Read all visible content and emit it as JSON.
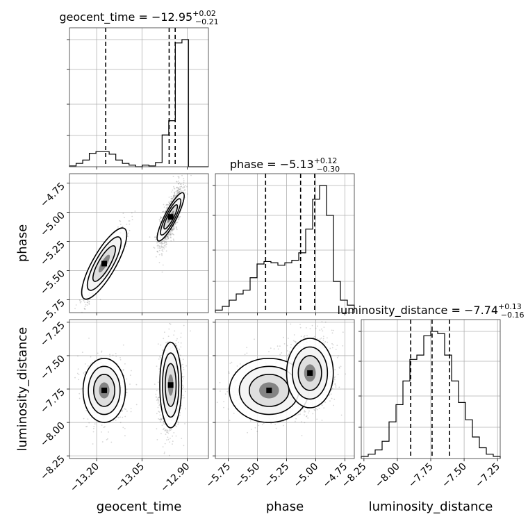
{
  "chart_data": {
    "type": "corner",
    "parameters": [
      "geocent_time",
      "phase",
      "luminosity_distance"
    ],
    "ranges": {
      "geocent_time": [
        -13.29,
        -12.83
      ],
      "phase": [
        -5.86,
        -4.67
      ],
      "luminosity_distance": [
        -8.27,
        -7.23
      ]
    },
    "ticks": {
      "geocent_time": [
        "-13.20",
        "-13.05",
        "-12.90"
      ],
      "phase": [
        "-5.75",
        "-5.50",
        "-5.25",
        "-5.00",
        "-4.75"
      ],
      "luminosity_distance": [
        "-8.25",
        "-8.00",
        "-7.75",
        "-7.50",
        "-7.25"
      ]
    },
    "tick_values": {
      "geocent_time": [
        -13.2,
        -13.05,
        -12.9
      ],
      "phase": [
        -5.75,
        -5.5,
        -5.25,
        -5.0,
        -4.75
      ],
      "luminosity_distance": [
        -8.25,
        -8.0,
        -7.75,
        -7.5,
        -7.25
      ]
    },
    "axis_labels": {
      "geocent_time": "geocent_time",
      "phase": "phase",
      "luminosity_distance": "luminosity_distance"
    },
    "titles": [
      {
        "parameter": "geocent_time",
        "text": "geocent_time = −12.95",
        "plus": "+0.02",
        "minus": "−0.21"
      },
      {
        "parameter": "phase",
        "text": "phase = −5.13",
        "plus": "+0.12",
        "minus": "−0.30"
      },
      {
        "parameter": "luminosity_distance",
        "text": "luminosity_distance = −7.74",
        "plus": "+0.13",
        "minus": "−0.16"
      }
    ],
    "quantiles": {
      "geocent_time": [
        -13.17,
        -12.96,
        -12.94
      ],
      "phase": [
        -5.43,
        -5.13,
        -5.01
      ],
      "luminosity_distance": [
        -7.9,
        -7.74,
        -7.61
      ]
    },
    "histograms": {
      "geocent_time": {
        "edges_range": [
          -13.29,
          -12.83
        ],
        "counts": [
          1,
          4,
          8,
          16,
          18,
          18,
          15,
          8,
          4,
          2,
          0,
          2,
          1,
          5,
          38,
          55,
          148,
          152,
          0,
          0,
          0
        ]
      },
      "phase": {
        "edges_range": [
          -5.86,
          -4.67
        ],
        "counts": [
          2,
          5,
          10,
          15,
          18,
          28,
          39,
          41,
          40,
          38,
          40,
          42,
          48,
          67,
          91,
          102,
          78,
          25,
          10,
          6
        ]
      },
      "luminosity_distance": {
        "edges_range": [
          -8.27,
          -7.23
        ],
        "counts": [
          1,
          2,
          4,
          8,
          17,
          25,
          36,
          46,
          48,
          57,
          59,
          58,
          48,
          36,
          26,
          18,
          10,
          5,
          2,
          1
        ]
      }
    },
    "grid": true,
    "colors": {
      "lines": "#000000",
      "grid": "#b0b0b0",
      "points": "#5a5a5a"
    }
  }
}
